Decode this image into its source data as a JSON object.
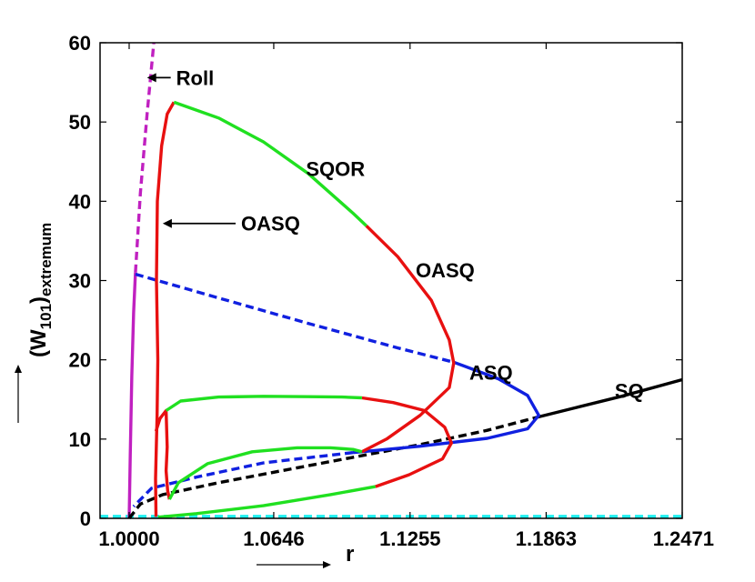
{
  "chart_data": {
    "type": "line",
    "title": "",
    "xlabel": "r",
    "ylabel": "(W101)extremum",
    "ylabel_parts": {
      "open": "(W",
      "sub1": "101",
      "close": ")",
      "sub2": "extremum"
    },
    "xlim": [
      0.987,
      1.2471
    ],
    "ylim": [
      0,
      60
    ],
    "grid": false,
    "xticks": [
      1.0,
      1.0646,
      1.1255,
      1.1863,
      1.2471
    ],
    "xtick_labels": [
      "1.0000",
      "1.0646",
      "1.1255",
      "1.1863",
      "1.2471"
    ],
    "yticks": [
      0,
      10,
      20,
      30,
      40,
      50,
      60
    ],
    "ytick_labels": [
      "0",
      "10",
      "20",
      "30",
      "40",
      "50",
      "60"
    ],
    "colors": {
      "roll": "#c020c0",
      "sq": "#000000",
      "asq": "#1020e0",
      "oasq": "#e81010",
      "sqor": "#20e020",
      "cond": "#20f0f0"
    },
    "series": [
      {
        "name": "Conduction",
        "color_key": "cond",
        "style": "dashed",
        "points": [
          [
            0.987,
            0.25
          ],
          [
            1.2471,
            0.25
          ]
        ]
      },
      {
        "name": "Roll stable",
        "color_key": "roll",
        "style": "solid",
        "points": [
          [
            1.0,
            0
          ],
          [
            1.0005,
            8
          ],
          [
            1.0012,
            18
          ],
          [
            1.002,
            26
          ],
          [
            1.0028,
            31
          ]
        ]
      },
      {
        "name": "Roll unstable",
        "color_key": "roll",
        "style": "dashed",
        "points": [
          [
            1.0028,
            31
          ],
          [
            1.005,
            41
          ],
          [
            1.008,
            51
          ],
          [
            1.011,
            60
          ]
        ]
      },
      {
        "name": "SQ unstable",
        "color_key": "sq",
        "style": "dashed",
        "points": [
          [
            1.0,
            0
          ],
          [
            1.005,
            1.8
          ],
          [
            1.015,
            3.0
          ],
          [
            1.04,
            4.5
          ],
          [
            1.07,
            6.1
          ],
          [
            1.1,
            7.7
          ],
          [
            1.13,
            9.3
          ],
          [
            1.16,
            11.1
          ],
          [
            1.183,
            12.8
          ]
        ]
      },
      {
        "name": "SQ stable",
        "color_key": "sq",
        "style": "solid",
        "points": [
          [
            1.183,
            12.8
          ],
          [
            1.2,
            14
          ],
          [
            1.22,
            15.4
          ],
          [
            1.2471,
            17.5
          ]
        ]
      },
      {
        "name": "ASQ unstable",
        "color_key": "asq",
        "style": "dashed",
        "points": [
          [
            1.0028,
            30.8
          ],
          [
            1.04,
            27.8
          ],
          [
            1.08,
            24.6
          ],
          [
            1.12,
            21.5
          ],
          [
            1.145,
            19.7
          ]
        ]
      },
      {
        "name": "ASQ stable",
        "color_key": "asq",
        "style": "solid",
        "points": [
          [
            1.145,
            19.7
          ],
          [
            1.165,
            17.6
          ],
          [
            1.178,
            15.5
          ],
          [
            1.183,
            13.0
          ],
          [
            1.178,
            11.3
          ],
          [
            1.16,
            10.1
          ],
          [
            1.13,
            9.1
          ],
          [
            1.1,
            8.3
          ]
        ]
      },
      {
        "name": "ASQ lower",
        "color_key": "asq",
        "style": "dashed",
        "points": [
          [
            1.1,
            8.3
          ],
          [
            1.06,
            7.0
          ],
          [
            1.03,
            5.2
          ],
          [
            1.01,
            3.8
          ],
          [
            1.002,
            1.5
          ]
        ]
      },
      {
        "name": "OASQ left",
        "color_key": "oasq",
        "style": "solid",
        "points": [
          [
            1.012,
            0.2
          ],
          [
            1.0118,
            5
          ],
          [
            1.0125,
            13
          ],
          [
            1.0128,
            20
          ],
          [
            1.0122,
            30
          ],
          [
            1.0126,
            40
          ],
          [
            1.0145,
            47
          ],
          [
            1.017,
            51
          ],
          [
            1.02,
            52.5
          ]
        ]
      },
      {
        "name": "SQOR top",
        "color_key": "sqor",
        "style": "solid",
        "points": [
          [
            1.02,
            52.5
          ],
          [
            1.04,
            50.5
          ],
          [
            1.06,
            47.5
          ],
          [
            1.08,
            43.5
          ],
          [
            1.1,
            38.5
          ],
          [
            1.106,
            36.9
          ]
        ]
      },
      {
        "name": "OASQ right",
        "color_key": "oasq",
        "style": "solid",
        "points": [
          [
            1.106,
            36.9
          ],
          [
            1.12,
            33
          ],
          [
            1.135,
            27.5
          ],
          [
            1.143,
            22.5
          ],
          [
            1.145,
            19.6
          ],
          [
            1.143,
            16.5
          ],
          [
            1.13,
            13
          ],
          [
            1.115,
            10
          ],
          [
            1.104,
            8.4
          ]
        ]
      },
      {
        "name": "OASQ inner crossing",
        "color_key": "oasq",
        "style": "solid",
        "points": [
          [
            1.012,
            11
          ],
          [
            1.0138,
            12.6
          ],
          [
            1.0165,
            13.6
          ],
          [
            1.017,
            9
          ],
          [
            1.0165,
            6
          ],
          [
            1.0172,
            3.5
          ],
          [
            1.018,
            2.4
          ]
        ]
      },
      {
        "name": "OASQ lower right",
        "color_key": "oasq",
        "style": "solid",
        "points": [
          [
            1.104,
            15.2
          ],
          [
            1.118,
            14.6
          ],
          [
            1.132,
            13.6
          ],
          [
            1.141,
            11.5
          ],
          [
            1.144,
            9.5
          ],
          [
            1.14,
            7.5
          ],
          [
            1.125,
            5.5
          ],
          [
            1.11,
            4
          ]
        ]
      },
      {
        "name": "SQOR inner upper",
        "color_key": "sqor",
        "style": "solid",
        "points": [
          [
            1.0165,
            13.6
          ],
          [
            1.023,
            14.8
          ],
          [
            1.04,
            15.3
          ],
          [
            1.06,
            15.4
          ],
          [
            1.08,
            15.35
          ],
          [
            1.095,
            15.3
          ],
          [
            1.104,
            15.2
          ]
        ]
      },
      {
        "name": "SQOR inner lower",
        "color_key": "sqor",
        "style": "solid",
        "points": [
          [
            1.018,
            2.4
          ],
          [
            1.022,
            4.5
          ],
          [
            1.035,
            6.9
          ],
          [
            1.055,
            8.4
          ],
          [
            1.075,
            8.9
          ],
          [
            1.09,
            8.9
          ],
          [
            1.1,
            8.7
          ],
          [
            1.104,
            8.4
          ]
        ]
      },
      {
        "name": "SQOR bottom",
        "color_key": "sqor",
        "style": "solid",
        "points": [
          [
            1.013,
            0.15
          ],
          [
            1.03,
            0.6
          ],
          [
            1.06,
            1.6
          ],
          [
            1.09,
            3.0
          ],
          [
            1.11,
            4
          ]
        ]
      }
    ],
    "annotations": [
      {
        "text": "Roll",
        "x": 1.021,
        "y": 55.6,
        "arrow_to": [
          1.008,
          55.6
        ]
      },
      {
        "text": "OASQ",
        "x": 1.05,
        "y": 37.2,
        "arrow_to": [
          1.015,
          37.2
        ]
      },
      {
        "text": "SQOR",
        "x": 1.079,
        "y": 44.1
      },
      {
        "text": "OASQ",
        "x": 1.128,
        "y": 31.3
      },
      {
        "text": "ASQ",
        "x": 1.152,
        "y": 18.4
      },
      {
        "text": "SQ",
        "x": 1.217,
        "y": 16.1
      }
    ],
    "side_arrows": {
      "y_axis": "up",
      "x_axis": "right"
    }
  }
}
